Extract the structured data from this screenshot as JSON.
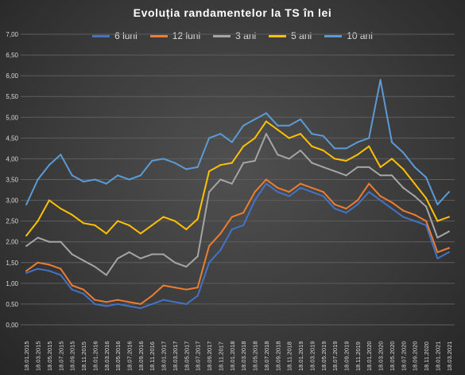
{
  "chart_data": {
    "type": "line",
    "title": "Evoluția randamentelor la TS în lei",
    "ylim": [
      0,
      7
    ],
    "yticks": [
      "0,00",
      "0,50",
      "1,00",
      "1,50",
      "2,00",
      "2,50",
      "3,00",
      "3,50",
      "4,00",
      "4,50",
      "5,00",
      "5,50",
      "6,00",
      "6,50",
      "7,00"
    ],
    "xticks": [
      "18.01.2015",
      "18.03.2015",
      "18.05.2015",
      "18.07.2015",
      "18.09.2015",
      "18.11.2015",
      "18.01.2016",
      "18.03.2016",
      "18.05.2016",
      "18.07.2016",
      "18.09.2016",
      "18.11.2016",
      "18.01.2017",
      "18.03.2017",
      "18.05.2017",
      "18.07.2017",
      "18.09.2017",
      "18.11.2017",
      "18.01.2018",
      "18.03.2018",
      "18.05.2018",
      "18.07.2018",
      "18.09.2018",
      "18.11.2018",
      "18.01.2019",
      "18.03.2019",
      "18.05.2019",
      "18.07.2019",
      "18.09.2019",
      "18.11.2019",
      "18.01.2020",
      "18.03.2020",
      "18.05.2020",
      "18.07.2020",
      "18.09.2020",
      "18.11.2020",
      "18.01.2021",
      "18.03.2021"
    ],
    "grid": true,
    "legend_position": "top",
    "x": [
      "2015-01",
      "2015-03",
      "2015-05",
      "2015-07",
      "2015-09",
      "2015-11",
      "2016-01",
      "2016-03",
      "2016-05",
      "2016-07",
      "2016-09",
      "2016-11",
      "2017-01",
      "2017-03",
      "2017-05",
      "2017-07",
      "2017-09",
      "2017-11",
      "2018-01",
      "2018-03",
      "2018-05",
      "2018-07",
      "2018-09",
      "2018-11",
      "2019-01",
      "2019-03",
      "2019-05",
      "2019-07",
      "2019-09",
      "2019-11",
      "2020-01",
      "2020-03",
      "2020-05",
      "2020-07",
      "2020-09",
      "2020-11",
      "2021-01",
      "2021-03"
    ],
    "series": [
      {
        "name": "6 luni",
        "color": "#4472c4",
        "values": [
          1.25,
          1.35,
          1.3,
          1.2,
          0.85,
          0.75,
          0.5,
          0.45,
          0.5,
          0.45,
          0.4,
          0.5,
          0.6,
          0.55,
          0.5,
          0.7,
          1.5,
          1.8,
          2.3,
          2.4,
          3.0,
          3.4,
          3.2,
          3.1,
          3.3,
          3.2,
          3.1,
          2.8,
          2.7,
          2.9,
          3.2,
          3.0,
          2.8,
          2.6,
          2.5,
          2.4,
          1.6,
          1.75
        ]
      },
      {
        "name": "12 luni",
        "color": "#ed7d31",
        "values": [
          1.3,
          1.5,
          1.45,
          1.35,
          0.95,
          0.85,
          0.6,
          0.55,
          0.6,
          0.55,
          0.5,
          0.7,
          0.95,
          0.9,
          0.85,
          0.9,
          1.9,
          2.2,
          2.6,
          2.7,
          3.2,
          3.5,
          3.3,
          3.2,
          3.4,
          3.3,
          3.2,
          2.9,
          2.8,
          3.0,
          3.4,
          3.1,
          2.95,
          2.75,
          2.65,
          2.5,
          1.75,
          1.85
        ]
      },
      {
        "name": "3 ani",
        "color": "#a5a5a5",
        "values": [
          1.9,
          2.1,
          2.0,
          2.0,
          1.7,
          1.55,
          1.4,
          1.2,
          1.6,
          1.75,
          1.6,
          1.7,
          1.7,
          1.5,
          1.4,
          1.65,
          3.2,
          3.5,
          3.4,
          3.9,
          3.95,
          4.6,
          4.1,
          4.0,
          4.2,
          3.9,
          3.8,
          3.7,
          3.6,
          3.8,
          3.8,
          3.6,
          3.6,
          3.3,
          3.1,
          2.85,
          2.1,
          2.25
        ]
      },
      {
        "name": "5 ani",
        "color": "#ffc000",
        "values": [
          2.15,
          2.5,
          3.0,
          2.8,
          2.65,
          2.45,
          2.4,
          2.2,
          2.5,
          2.4,
          2.2,
          2.4,
          2.6,
          2.5,
          2.3,
          2.55,
          3.7,
          3.85,
          3.9,
          4.3,
          4.5,
          4.9,
          4.7,
          4.5,
          4.6,
          4.3,
          4.2,
          4.0,
          3.95,
          4.1,
          4.3,
          3.8,
          4.0,
          3.75,
          3.4,
          3.05,
          2.5,
          2.6
        ]
      },
      {
        "name": "10 ani",
        "color": "#5b9bd5",
        "values": [
          2.9,
          3.5,
          3.85,
          4.1,
          3.6,
          3.45,
          3.5,
          3.4,
          3.6,
          3.5,
          3.6,
          3.95,
          4.0,
          3.9,
          3.75,
          3.8,
          4.5,
          4.6,
          4.4,
          4.8,
          4.95,
          5.1,
          4.8,
          4.8,
          4.95,
          4.6,
          4.55,
          4.25,
          4.25,
          4.4,
          4.5,
          5.9,
          4.4,
          4.15,
          3.8,
          3.55,
          2.9,
          3.2
        ]
      }
    ]
  }
}
